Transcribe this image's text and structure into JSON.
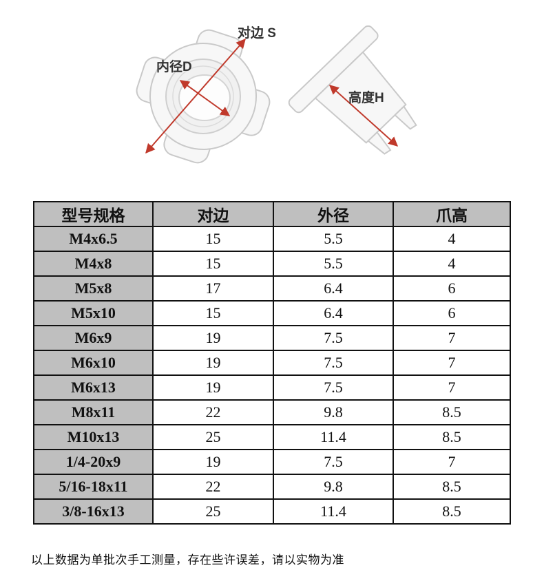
{
  "diagram": {
    "labels": {
      "across_flats": "对边 S",
      "inner_diameter": "内径D",
      "height": "高度H"
    },
    "views": [
      "top-view-sketch",
      "side-view-sketch"
    ]
  },
  "table": {
    "columns": [
      "型号规格",
      "对边",
      "外径",
      "爪高"
    ],
    "rows": [
      [
        "M4x6.5",
        "15",
        "5.5",
        "4"
      ],
      [
        "M4x8",
        "15",
        "5.5",
        "4"
      ],
      [
        "M5x8",
        "17",
        "6.4",
        "6"
      ],
      [
        "M5x10",
        "15",
        "6.4",
        "6"
      ],
      [
        "M6x9",
        "19",
        "7.5",
        "7"
      ],
      [
        "M6x10",
        "19",
        "7.5",
        "7"
      ],
      [
        "M6x13",
        "19",
        "7.5",
        "7"
      ],
      [
        "M8x11",
        "22",
        "9.8",
        "8.5"
      ],
      [
        "M10x13",
        "25",
        "11.4",
        "8.5"
      ],
      [
        "1/4-20x9",
        "19",
        "7.5",
        "7"
      ],
      [
        "5/16-18x11",
        "22",
        "9.8",
        "8.5"
      ],
      [
        "3/8-16x13",
        "25",
        "11.4",
        "8.5"
      ]
    ]
  },
  "footer": {
    "note": "以上数据为单批次手工测量，存在些许误差，请以实物为准"
  },
  "colors": {
    "table_header_bg": "#bfbfbf",
    "table_border": "#111111",
    "dimension_arrow": "#c0392b",
    "sketch_stroke": "#c9c9c9",
    "page_bg": "#ffffff"
  }
}
